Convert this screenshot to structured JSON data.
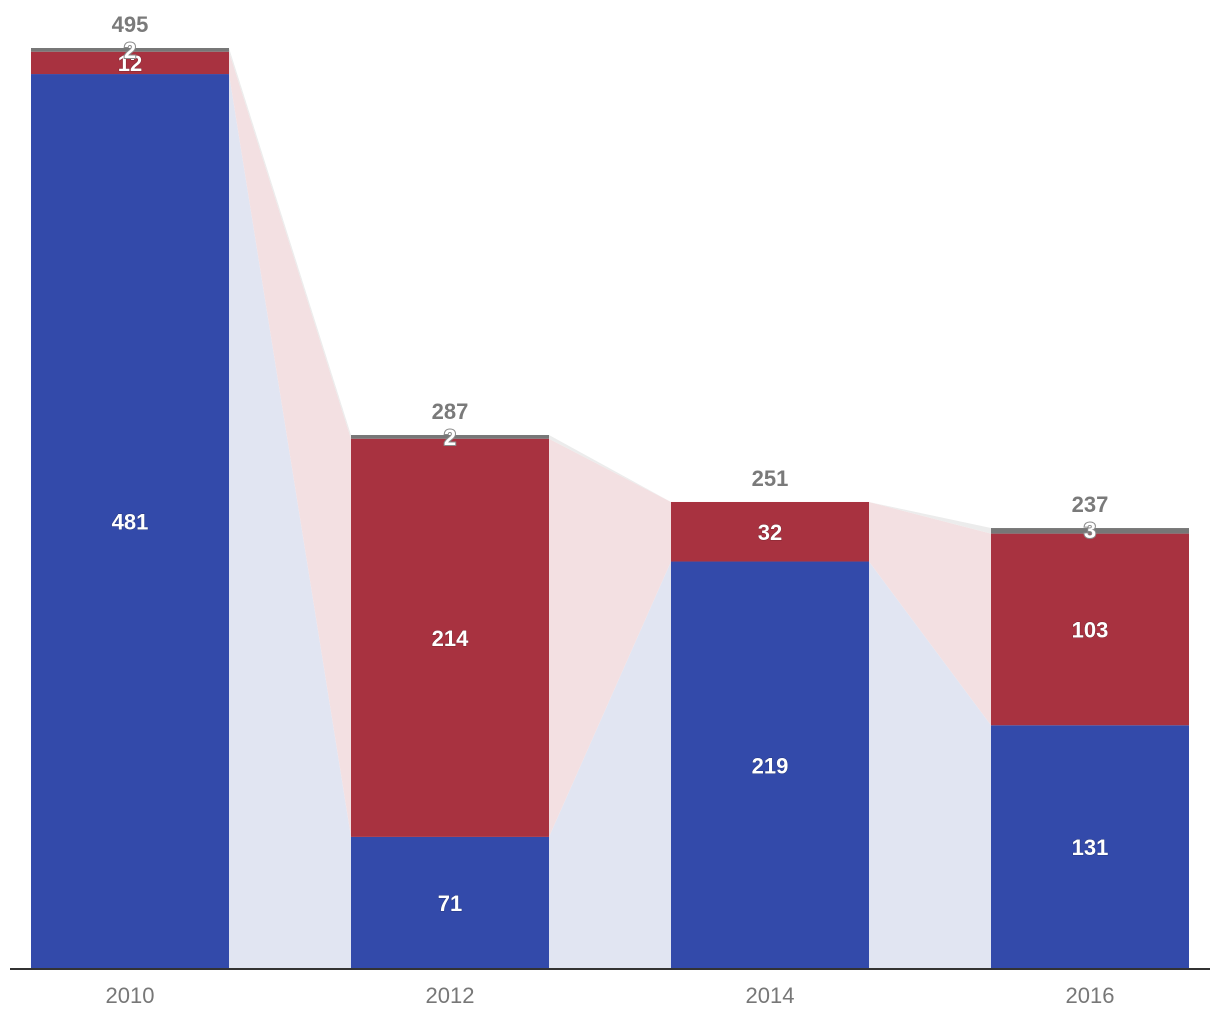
{
  "chart_data": {
    "type": "bar",
    "stacked": true,
    "categories": [
      "2010",
      "2012",
      "2014",
      "2016"
    ],
    "series": [
      {
        "color": "#334aaa",
        "values": [
          481,
          71,
          219,
          131
        ]
      },
      {
        "color": "#a83240",
        "values": [
          12,
          214,
          32,
          103
        ]
      },
      {
        "color": "#777777",
        "values": [
          2,
          2,
          0,
          3
        ]
      }
    ],
    "totals": [
      495,
      287,
      251,
      237
    ],
    "connector_colors": [
      "#e1e5f2",
      "#f3e0e2",
      "#ececec"
    ],
    "ylim": [
      0,
      495
    ],
    "grid": false,
    "legend": "none"
  }
}
